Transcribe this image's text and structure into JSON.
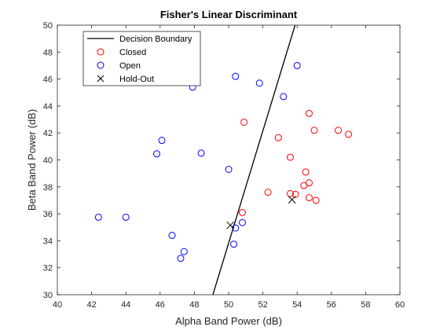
{
  "chart_data": {
    "type": "scatter",
    "title": "Fisher's Linear Discriminant",
    "xlabel": "Alpha Band Power (dB)",
    "ylabel": "Beta Band Power (dB)",
    "xlim": [
      40,
      60
    ],
    "ylim": [
      30,
      50
    ],
    "xticks": [
      40,
      42,
      44,
      46,
      48,
      50,
      52,
      54,
      56,
      58,
      60
    ],
    "yticks": [
      30,
      32,
      34,
      36,
      38,
      40,
      42,
      44,
      46,
      48,
      50
    ],
    "grid": false,
    "legend_position": "top-left",
    "decision_boundary": {
      "name": "Decision Boundary",
      "color": "#000000",
      "x": [
        49.08,
        53.88
      ],
      "y": [
        30,
        50
      ]
    },
    "series": [
      {
        "name": "Closed",
        "marker": "circle",
        "color": "#ff0000",
        "x": [
          50.9,
          52.9,
          54.7,
          55.0,
          56.4,
          57.0,
          53.6,
          54.5,
          54.7,
          54.4,
          52.3,
          53.6,
          53.9,
          54.7,
          55.1,
          50.8
        ],
        "y": [
          42.8,
          41.65,
          43.45,
          42.2,
          42.2,
          41.9,
          40.2,
          39.1,
          38.3,
          38.1,
          37.6,
          37.5,
          37.45,
          37.2,
          37.0,
          36.1
        ]
      },
      {
        "name": "Open",
        "marker": "circle",
        "color": "#0000ff",
        "x": [
          54.0,
          50.4,
          47.9,
          51.8,
          53.2,
          46.1,
          45.8,
          48.4,
          50.0,
          42.4,
          44.0,
          50.8,
          50.4,
          46.7,
          50.3,
          47.4,
          47.2
        ],
        "y": [
          47.0,
          46.2,
          45.4,
          45.7,
          44.7,
          41.45,
          40.45,
          40.5,
          39.3,
          35.75,
          35.75,
          35.35,
          34.95,
          34.4,
          33.75,
          33.2,
          32.7
        ]
      },
      {
        "name": "Hold-Out",
        "marker": "x",
        "color": "#000000",
        "x": [
          50.1,
          53.7
        ],
        "y": [
          35.15,
          37.05
        ]
      }
    ]
  }
}
